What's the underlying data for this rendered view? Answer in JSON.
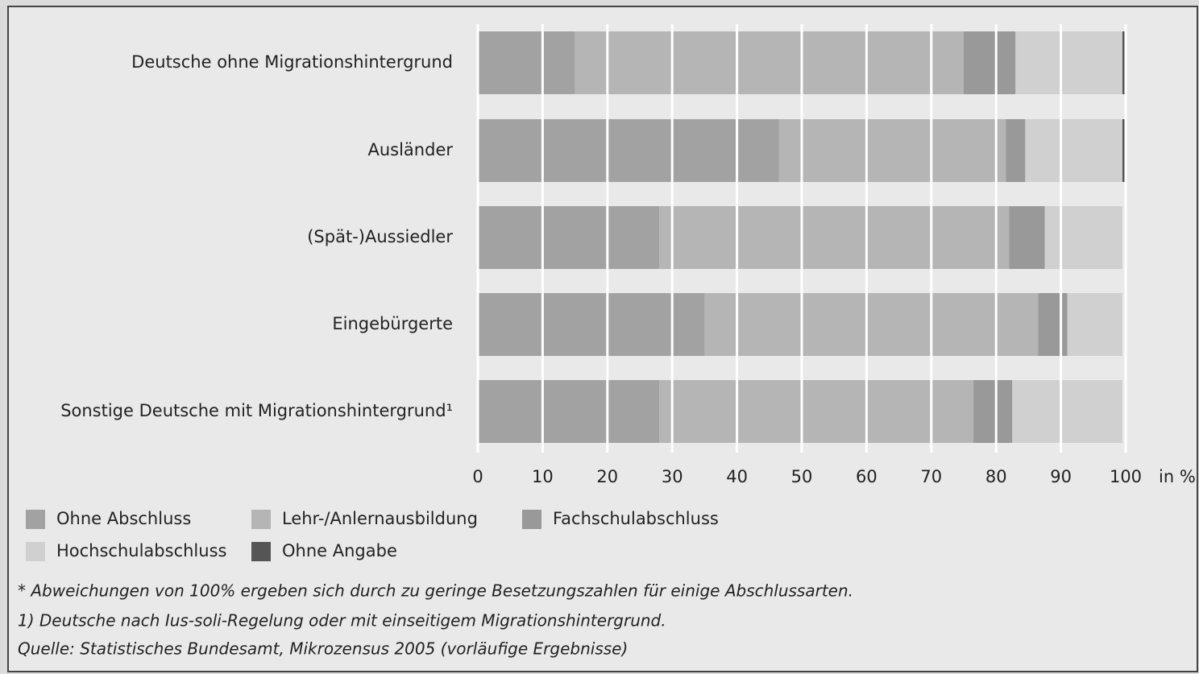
{
  "chart_data": {
    "type": "stacked-bar-horizontal",
    "categories": [
      "Deutsche ohne Migrationshintergrund",
      "Ausländer",
      "(Spät-)Aussiedler",
      "Eingebürgerte",
      "Sonstige Deutsche mit Migrationshintergrund¹"
    ],
    "series": [
      {
        "name": "Ohne Abschluss",
        "color": "#a2a2a2",
        "values": [
          15,
          46.5,
          28,
          35,
          28
        ]
      },
      {
        "name": "Lehr-/Anlernausbildung",
        "color": "#b5b5b5",
        "values": [
          60,
          35,
          54,
          51.5,
          48.5
        ]
      },
      {
        "name": "Fachschulabschluss",
        "color": "#999999",
        "values": [
          8,
          3,
          5.5,
          4.5,
          6
        ]
      },
      {
        "name": "Hochschulabschluss",
        "color": "#d0d0d0",
        "values": [
          16.5,
          15,
          12,
          8.5,
          17
        ]
      },
      {
        "name": "Ohne Angabe",
        "color": "#555555",
        "values": [
          0.5,
          0.5,
          0,
          0,
          0
        ]
      }
    ],
    "xlim": [
      0,
      100
    ],
    "xticks": [
      0,
      10,
      20,
      30,
      40,
      50,
      60,
      70,
      80,
      90,
      100
    ],
    "xlabel": "in %",
    "grid": true,
    "notes": [
      "*  Abweichungen von 100% ergeben sich durch zu geringe Besetzungszahlen für einige Abschlussarten.",
      "1)  Deutsche nach Ius-soli-Regelung oder mit einseitigem Migrationshintergrund.",
      "Quelle: Statistisches Bundesamt, Mikrozensus 2005 (vorläufige Ergebnisse)"
    ]
  }
}
